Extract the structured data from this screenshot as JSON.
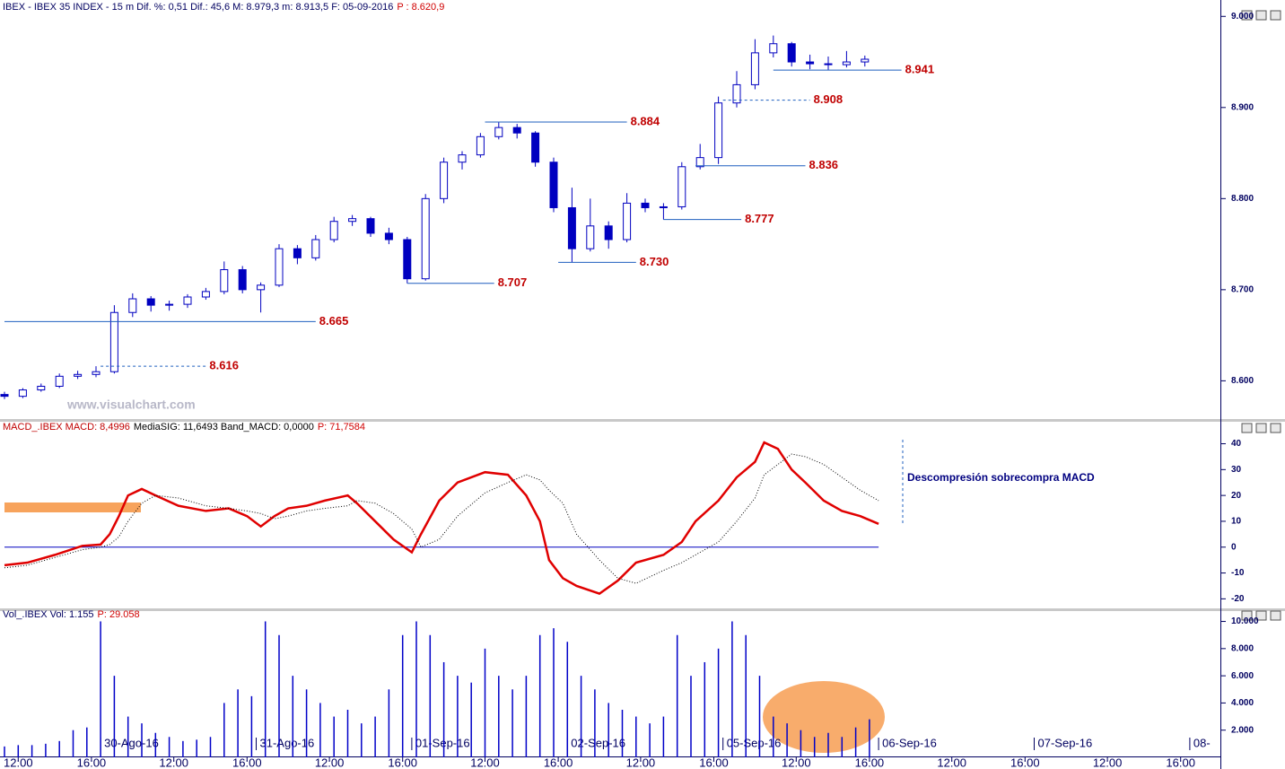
{
  "chart_data": [
    {
      "type": "candlestick",
      "title": "IBEX - IBEX 35 INDEX - 15 m  Dif. %: 0,51  Dif.: 45,6  M: 8.979,3  m: 8.913,5  F: 05-09-2016",
      "subtitle": "P : 8.620,9",
      "watermark": "www.visualchart.com",
      "color": "#0000c0",
      "xlim": [
        0,
        265
      ],
      "ylim": [
        8560,
        9018
      ],
      "yticks": [
        {
          "value": 8600,
          "label": "8.600"
        },
        {
          "value": 8700,
          "label": "8.700"
        },
        {
          "value": 8800,
          "label": "8.800"
        },
        {
          "value": 8900,
          "label": "8.900"
        },
        {
          "value": 9000,
          "label": "9.000"
        }
      ],
      "x": [
        0,
        4,
        8,
        12,
        16,
        20,
        24,
        28,
        32,
        36,
        40,
        44,
        48,
        52,
        56,
        60,
        64,
        68,
        72,
        76,
        80,
        84,
        88,
        92,
        96,
        100,
        104,
        108,
        112,
        116,
        120,
        124,
        128,
        132,
        136,
        140,
        144,
        148,
        152,
        156,
        160,
        164,
        168,
        172,
        176,
        180,
        184,
        188
      ],
      "open": [
        8585,
        8583,
        8590,
        8594,
        8605,
        8607,
        8610,
        8675,
        8690,
        8683,
        8684,
        8692,
        8698,
        8722,
        8700,
        8705,
        8745,
        8735,
        8755,
        8775,
        8778,
        8762,
        8755,
        8712,
        8800,
        8840,
        8848,
        8868,
        8878,
        8872,
        8840,
        8790,
        8745,
        8770,
        8755,
        8795,
        8790,
        8791,
        8835,
        8845,
        8905,
        8925,
        8960,
        8970,
        8950,
        8948,
        8947,
        8950
      ],
      "high": [
        8588,
        8592,
        8597,
        8608,
        8611,
        8616,
        8683,
        8696,
        8693,
        8688,
        8695,
        8702,
        8731,
        8726,
        8708,
        8750,
        8749,
        8760,
        8780,
        8782,
        8780,
        8768,
        8758,
        8805,
        8845,
        8852,
        8872,
        8884,
        8882,
        8874,
        8845,
        8812,
        8800,
        8775,
        8806,
        8800,
        8795,
        8840,
        8860,
        8912,
        8940,
        8975,
        8979,
        8972,
        8958,
        8956,
        8962,
        8957
      ],
      "low": [
        8580,
        8581,
        8588,
        8592,
        8602,
        8604,
        8608,
        8670,
        8676,
        8677,
        8680,
        8689,
        8695,
        8696,
        8675,
        8703,
        8728,
        8732,
        8752,
        8770,
        8758,
        8750,
        8707,
        8710,
        8795,
        8832,
        8845,
        8865,
        8866,
        8835,
        8785,
        8730,
        8742,
        8745,
        8752,
        8785,
        8777,
        8788,
        8832,
        8838,
        8900,
        8920,
        8955,
        8945,
        8942,
        8941,
        8944,
        8945
      ],
      "close": [
        8583,
        8590,
        8594,
        8605,
        8607,
        8610,
        8675,
        8690,
        8683,
        8684,
        8692,
        8698,
        8722,
        8700,
        8705,
        8745,
        8735,
        8755,
        8775,
        8778,
        8762,
        8755,
        8712,
        8800,
        8840,
        8848,
        8868,
        8878,
        8872,
        8840,
        8790,
        8745,
        8770,
        8755,
        8795,
        8790,
        8791,
        8835,
        8845,
        8905,
        8925,
        8960,
        8970,
        8950,
        8948,
        8947,
        8950,
        8953
      ],
      "levels": [
        {
          "value": 8616,
          "label": "8.616",
          "from": 21,
          "to": 44,
          "dashed": true
        },
        {
          "value": 8665,
          "label": "8.665",
          "from": 0,
          "to": 68,
          "dashed": false
        },
        {
          "value": 8707,
          "label": "8.707",
          "from": 88,
          "to": 107,
          "dashed": false
        },
        {
          "value": 8730,
          "label": "8.730",
          "from": 121,
          "to": 138,
          "dashed": false
        },
        {
          "value": 8777,
          "label": "8.777",
          "from": 144,
          "to": 161,
          "dashed": false
        },
        {
          "value": 8836,
          "label": "8.836",
          "from": 151,
          "to": 175,
          "dashed": false
        },
        {
          "value": 8884,
          "label": "8.884",
          "from": 105,
          "to": 136,
          "dashed": false
        },
        {
          "value": 8908,
          "label": "8.908",
          "from": 157,
          "to": 176,
          "dashed": true
        },
        {
          "value": 8941,
          "label": "8.941",
          "from": 168,
          "to": 196,
          "dashed": false
        }
      ]
    },
    {
      "type": "line",
      "title": "MACD_.IBEX MACD: 8,4996",
      "subtitle": "MediaSIG: 11,6493 Band_MACD: 0,0000",
      "note": "P: 71,7584",
      "annotation": "Descompresión sobrecompra MACD",
      "xlim": [
        0,
        265
      ],
      "ylim": [
        -23,
        44
      ],
      "yticks": [
        -20,
        -10,
        0,
        10,
        20,
        30,
        40
      ],
      "band": 0,
      "band_color": "#0000c0",
      "x": [
        0,
        5,
        11,
        17,
        21,
        23,
        25,
        27,
        30,
        33,
        38,
        44,
        49,
        53,
        56,
        59,
        62,
        66,
        70,
        75,
        77,
        81,
        85,
        89,
        91,
        95,
        99,
        105,
        110,
        114,
        117,
        119,
        122,
        125,
        130,
        134,
        138,
        144,
        148,
        151,
        156,
        160,
        164,
        166,
        169,
        172,
        175,
        179,
        183,
        187,
        191
      ],
      "series": [
        {
          "name": "MACD",
          "color": "#e00000",
          "values": [
            -7,
            -6,
            -3,
            0.5,
            1,
            5,
            12,
            20,
            22.5,
            20,
            16,
            14,
            15,
            12,
            8,
            12,
            15,
            16,
            18,
            20,
            17,
            10,
            3,
            -2,
            5,
            18,
            25,
            29,
            28,
            20,
            10,
            -5,
            -12,
            -15,
            -18,
            -13,
            -6,
            -3,
            2,
            10,
            18,
            27,
            33,
            40.5,
            38,
            30,
            25,
            18,
            14,
            12,
            9
          ]
        },
        {
          "name": "MediaSIG",
          "color": "#000000",
          "values": [
            -8,
            -7,
            -4,
            -1,
            0,
            1,
            4,
            10,
            17,
            20,
            19,
            16,
            15,
            14,
            13,
            11,
            12,
            14,
            15,
            16,
            18,
            17,
            13,
            7,
            0,
            3,
            12,
            21,
            25,
            28,
            26,
            22,
            17,
            5,
            -5,
            -12,
            -14,
            -9,
            -6,
            -3,
            2,
            10,
            19,
            28,
            32,
            36,
            35,
            32,
            27,
            22,
            18
          ]
        }
      ]
    },
    {
      "type": "bar",
      "title": "Vol_.IBEX Vol: 1.155",
      "subtitle": "P: 29.058",
      "color": "#0000c8",
      "xlim": [
        0,
        265
      ],
      "ylim": [
        0,
        10300
      ],
      "yticks": [
        {
          "value": 2000,
          "label": "2.000"
        },
        {
          "value": 4000,
          "label": "4.000"
        },
        {
          "value": 6000,
          "label": "6.000"
        },
        {
          "value": 8000,
          "label": "8.000"
        },
        {
          "value": 10000,
          "label": "10.000"
        }
      ],
      "xticks": [
        {
          "value": 3,
          "label": "12:00"
        },
        {
          "value": 19,
          "label": "16:00"
        },
        {
          "value": 37,
          "label": "12:00"
        },
        {
          "value": 53,
          "label": "16:00"
        },
        {
          "value": 71,
          "label": "12:00"
        },
        {
          "value": 87,
          "label": "16:00"
        },
        {
          "value": 105,
          "label": "12:00"
        },
        {
          "value": 121,
          "label": "16:00"
        },
        {
          "value": 139,
          "label": "12:00"
        },
        {
          "value": 155,
          "label": "16:00"
        },
        {
          "value": 173,
          "label": "12:00"
        },
        {
          "value": 189,
          "label": "16:00"
        },
        {
          "value": 207,
          "label": "12:00"
        },
        {
          "value": 223,
          "label": "16:00"
        },
        {
          "value": 241,
          "label": "12:00"
        },
        {
          "value": 257,
          "label": "16:00"
        }
      ],
      "day_labels": [
        {
          "value": 21,
          "label": "30-Ago-16"
        },
        {
          "value": 55,
          "label": "31-Ago-16"
        },
        {
          "value": 89,
          "label": "01-Sep-16"
        },
        {
          "value": 123,
          "label": "02-Sep-16"
        },
        {
          "value": 157,
          "label": "05-Sep-16"
        },
        {
          "value": 191,
          "label": "06-Sep-16"
        },
        {
          "value": 225,
          "label": "07-Sep-16"
        },
        {
          "value": 259,
          "label": "08-"
        }
      ],
      "x": [
        0,
        3,
        6,
        9,
        12,
        15,
        18,
        21,
        24,
        27,
        30,
        33,
        36,
        39,
        42,
        45,
        48,
        51,
        54,
        57,
        60,
        63,
        66,
        69,
        72,
        75,
        78,
        81,
        84,
        87,
        90,
        93,
        96,
        99,
        102,
        105,
        108,
        111,
        114,
        117,
        120,
        123,
        126,
        129,
        132,
        135,
        138,
        141,
        144,
        147,
        150,
        153,
        156,
        159,
        162,
        165,
        168,
        171,
        174,
        177,
        180,
        183,
        186,
        189
      ],
      "values": [
        800,
        900,
        900,
        1000,
        1200,
        2000,
        2200,
        10000,
        6000,
        3000,
        2500,
        1800,
        1500,
        1200,
        1300,
        1500,
        4000,
        5000,
        4500,
        10000,
        9000,
        6000,
        5000,
        4000,
        3000,
        3500,
        2500,
        3000,
        5000,
        9000,
        10000,
        9000,
        7000,
        6000,
        5500,
        8000,
        6000,
        5000,
        6000,
        9000,
        9500,
        8500,
        6000,
        5000,
        4000,
        3500,
        3000,
        2500,
        3000,
        9000,
        6000,
        7000,
        8000,
        10000,
        9000,
        6000,
        3000,
        2500,
        2000,
        1500,
        1800,
        1500,
        2200,
        2800
      ]
    }
  ]
}
